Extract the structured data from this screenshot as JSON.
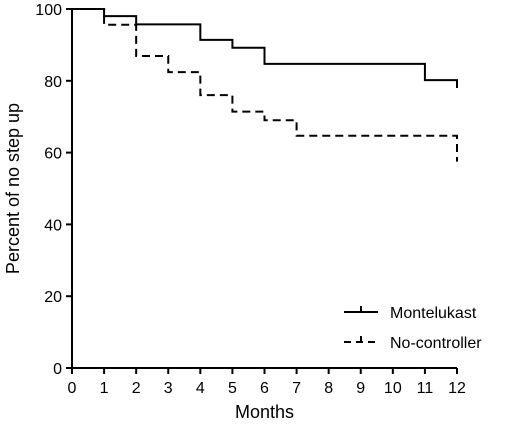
{
  "chart_data": {
    "type": "line",
    "subtype": "kaplan-meier step plot",
    "title": "",
    "xlabel": "Months",
    "ylabel": "Percent of no step up",
    "xlim": [
      0,
      12
    ],
    "ylim": [
      0,
      100
    ],
    "x_ticks": [
      0,
      1,
      2,
      3,
      4,
      5,
      6,
      7,
      8,
      9,
      10,
      11,
      12
    ],
    "y_ticks": [
      0,
      20,
      40,
      60,
      80,
      100
    ],
    "grid": false,
    "legend_position": "bottom-right",
    "series": [
      {
        "name": "Montelukast",
        "line_style": "solid",
        "color": "#000000",
        "points": [
          [
            0,
            100
          ],
          [
            1,
            98
          ],
          [
            2,
            95.7
          ],
          [
            4,
            91.4
          ],
          [
            5,
            89.2
          ],
          [
            6,
            84.7
          ],
          [
            11,
            80.2
          ],
          [
            12,
            78
          ]
        ]
      },
      {
        "name": "No-controller",
        "line_style": "dashed",
        "color": "#000000",
        "points": [
          [
            0,
            100
          ],
          [
            1,
            95.6
          ],
          [
            2,
            86.9
          ],
          [
            3,
            82.4
          ],
          [
            4,
            76
          ],
          [
            5,
            71.4
          ],
          [
            6,
            69
          ],
          [
            7,
            64.7
          ],
          [
            12,
            57.5
          ]
        ]
      }
    ]
  }
}
